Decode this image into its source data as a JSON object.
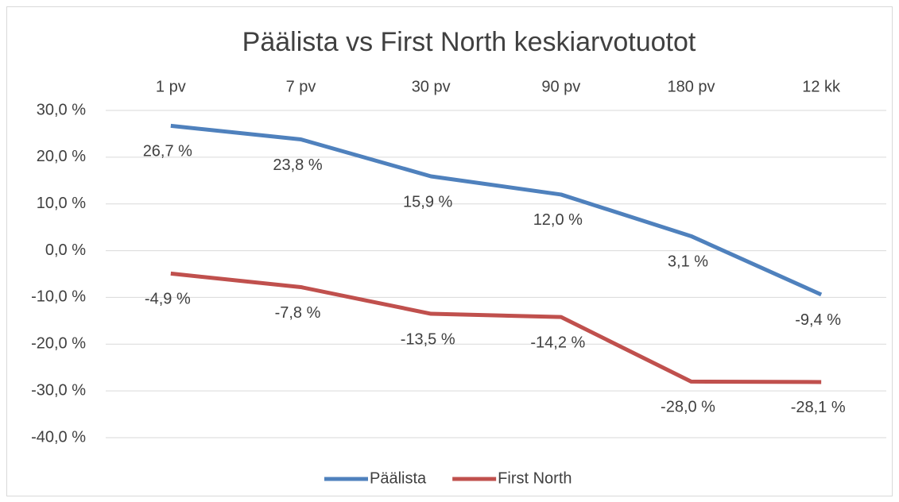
{
  "chart_data": {
    "type": "line",
    "title": "Päälista vs First North keskiarvotuotot",
    "categories": [
      "1 pv",
      "7 pv",
      "30 pv",
      "90 pv",
      "180 pv",
      "12 kk"
    ],
    "series": [
      {
        "name": "Päälista",
        "color": "#4f81bd",
        "values": [
          26.7,
          23.8,
          15.9,
          12.0,
          3.1,
          -9.4
        ],
        "value_labels": [
          "26,7 %",
          "23,8 %",
          "15,9 %",
          "12,0 %",
          "3,1 %",
          "-9,4 %"
        ]
      },
      {
        "name": "First North",
        "color": "#c0504d",
        "values": [
          -4.9,
          -7.8,
          -13.5,
          -14.2,
          -28.0,
          -28.1
        ],
        "value_labels": [
          "-4,9 %",
          "-7,8 %",
          "-13,5 %",
          "-14,2 %",
          "-28,0 %",
          "-28,1 %"
        ]
      }
    ],
    "ylim": [
      -40,
      30
    ],
    "yticks": [
      {
        "value": -40,
        "label": "-40,0 %"
      },
      {
        "value": -30,
        "label": "-30,0 %"
      },
      {
        "value": -20,
        "label": "-20,0 %"
      },
      {
        "value": -10,
        "label": "-10,0 %"
      },
      {
        "value": 0,
        "label": "0,0 %"
      },
      {
        "value": 10,
        "label": "10,0 %"
      },
      {
        "value": 20,
        "label": "20,0 %"
      },
      {
        "value": 30,
        "label": "30,0 %"
      }
    ],
    "grid": true,
    "legend": "bottom"
  }
}
